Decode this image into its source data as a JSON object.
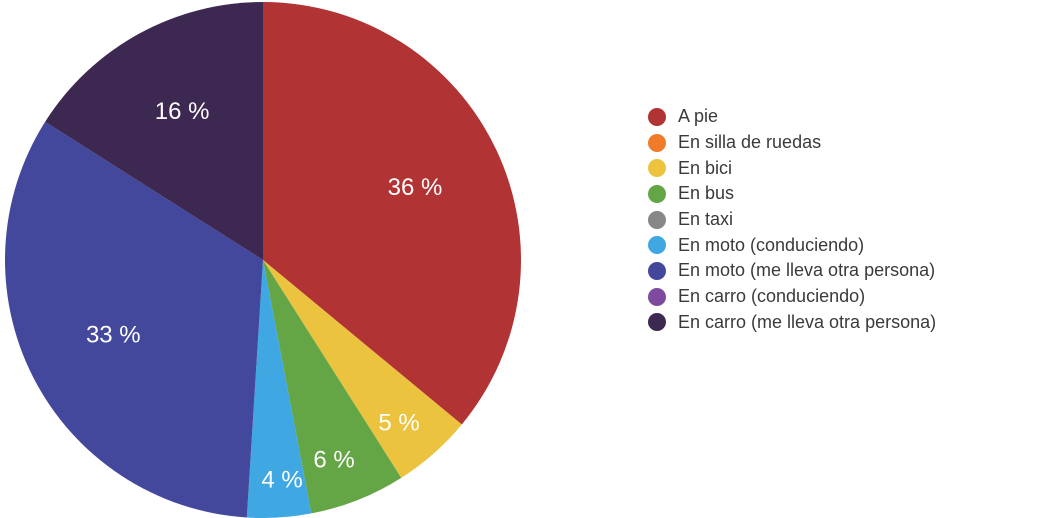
{
  "chart_data": {
    "type": "pie",
    "start_angle_deg": 0,
    "direction": "clockwise",
    "legend_position": "right",
    "slices": [
      {
        "name": "A pie",
        "value": 36,
        "label": "36 %",
        "color": "#b23333"
      },
      {
        "name": "En silla de ruedas",
        "value": 0,
        "label": "",
        "color": "#f07c2a"
      },
      {
        "name": "En bici",
        "value": 5,
        "label": "5 %",
        "color": "#ecc33f"
      },
      {
        "name": "En bus",
        "value": 6,
        "label": "6 %",
        "color": "#64a546"
      },
      {
        "name": "En taxi",
        "value": 0,
        "label": "",
        "color": "#878787"
      },
      {
        "name": "En moto (conduciendo)",
        "value": 4,
        "label": "4 %",
        "color": "#3fa8e3"
      },
      {
        "name": "En moto (me lleva otra persona)",
        "value": 33,
        "label": "33 %",
        "color": "#43489c"
      },
      {
        "name": "En carro (conduciendo)",
        "value": 0,
        "label": "",
        "color": "#7e4a9d"
      },
      {
        "name": "En carro (me lleva otra persona)",
        "value": 16,
        "label": "16 %",
        "color": "#3c2850"
      }
    ]
  }
}
